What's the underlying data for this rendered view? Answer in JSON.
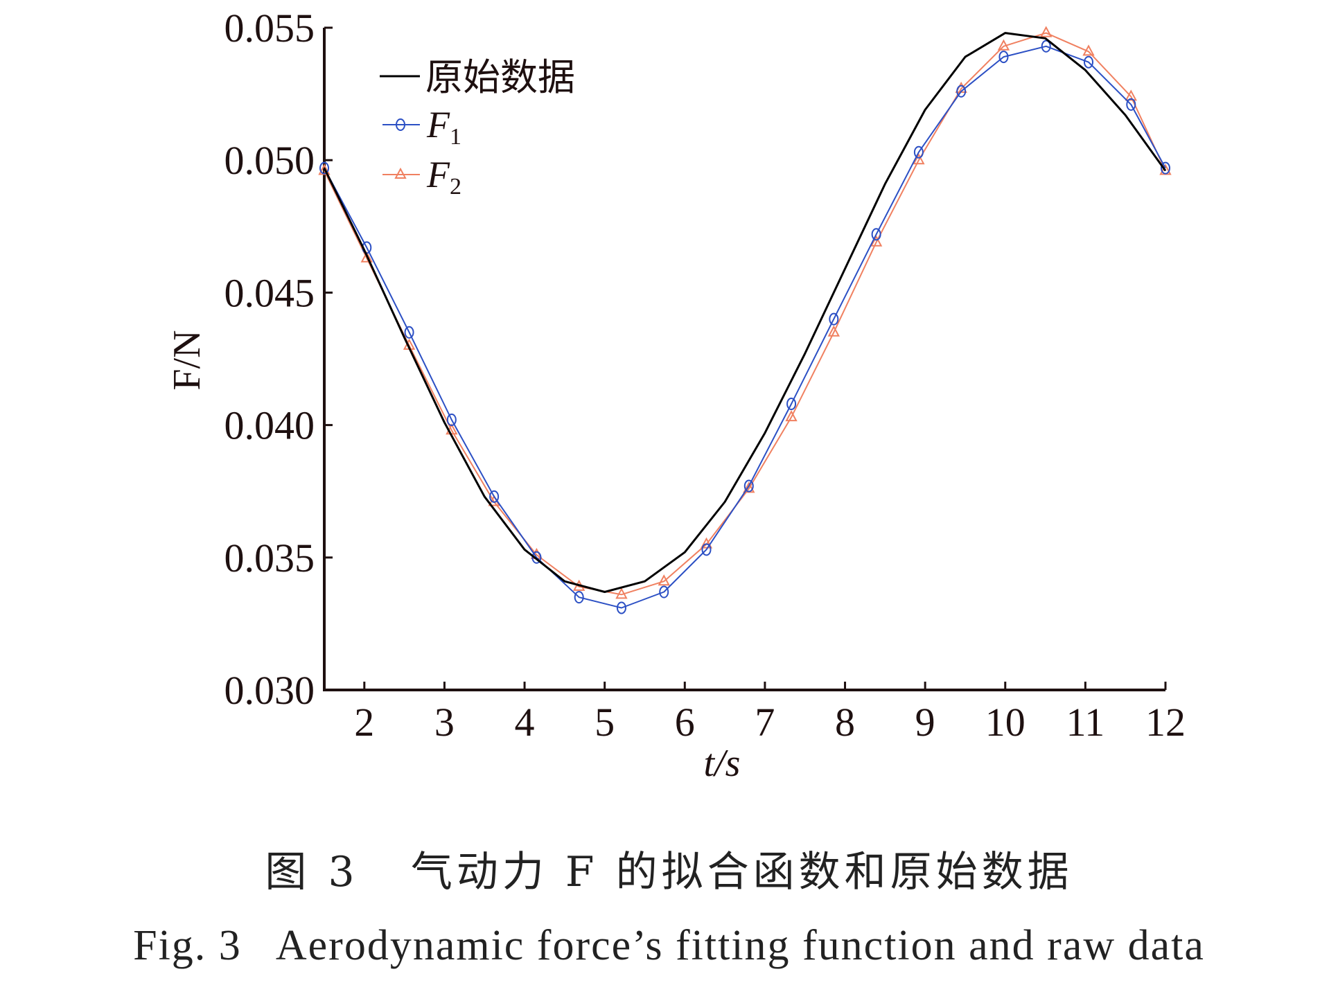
{
  "chart_data": {
    "type": "line",
    "xlabel": "t/s",
    "ylabel": "F/N",
    "xlim": [
      1.5,
      12
    ],
    "ylim": [
      0.03,
      0.055
    ],
    "xticks": [
      "2",
      "3",
      "4",
      "5",
      "6",
      "7",
      "8",
      "9",
      "10",
      "11",
      "12"
    ],
    "yticks": [
      "0.030",
      "0.035",
      "0.040",
      "0.045",
      "0.050",
      "0.055"
    ],
    "grid": false,
    "legend_position": "top-left",
    "series": [
      {
        "name": "原始数据",
        "color": "#000000",
        "marker": "none",
        "x": [
          1.5,
          2.0,
          2.5,
          3.0,
          3.5,
          4.0,
          4.5,
          5.0,
          5.5,
          6.0,
          6.5,
          7.0,
          7.5,
          8.0,
          8.5,
          9.0,
          9.5,
          10.0,
          10.5,
          11.0,
          11.5,
          12.0
        ],
        "values": [
          0.0497,
          0.0466,
          0.0433,
          0.0401,
          0.0373,
          0.0353,
          0.0341,
          0.0337,
          0.0341,
          0.0352,
          0.0371,
          0.0397,
          0.0427,
          0.0459,
          0.0491,
          0.0519,
          0.0539,
          0.0548,
          0.0546,
          0.0534,
          0.0517,
          0.0496
        ]
      },
      {
        "name": "F1",
        "color": "#2b4fc4",
        "marker": "circle",
        "x": [
          1.5,
          2.03,
          2.56,
          3.09,
          3.62,
          4.15,
          4.68,
          5.21,
          5.74,
          6.27,
          6.8,
          7.33,
          7.86,
          8.39,
          8.92,
          9.45,
          9.98,
          10.51,
          11.04,
          11.57,
          12.0
        ],
        "values": [
          0.0497,
          0.0467,
          0.0435,
          0.0402,
          0.0373,
          0.035,
          0.0335,
          0.0331,
          0.0337,
          0.0353,
          0.0377,
          0.0408,
          0.044,
          0.0472,
          0.0503,
          0.0526,
          0.0539,
          0.0543,
          0.0537,
          0.0521,
          0.0497
        ]
      },
      {
        "name": "F2",
        "color": "#f08060",
        "marker": "triangle",
        "x": [
          1.5,
          2.03,
          2.56,
          3.09,
          3.62,
          4.15,
          4.68,
          5.21,
          5.74,
          6.27,
          6.8,
          7.33,
          7.86,
          8.39,
          8.92,
          9.45,
          9.98,
          10.51,
          11.04,
          11.57,
          12.0
        ],
        "values": [
          0.0496,
          0.0463,
          0.043,
          0.0398,
          0.0371,
          0.0351,
          0.0339,
          0.0336,
          0.0341,
          0.0355,
          0.0376,
          0.0403,
          0.0435,
          0.0469,
          0.05,
          0.0527,
          0.0543,
          0.0548,
          0.0541,
          0.0524,
          0.0496
        ]
      }
    ]
  },
  "legend": {
    "entries": [
      {
        "main": "原始数据",
        "sub": ""
      },
      {
        "main": "F",
        "sub": "1"
      },
      {
        "main": "F",
        "sub": "2"
      }
    ]
  },
  "captions": {
    "zh": "图 3   气动力 F 的拟合函数和原始数据",
    "en": "Fig. 3   Aerodynamic force’s fitting function and raw data"
  }
}
